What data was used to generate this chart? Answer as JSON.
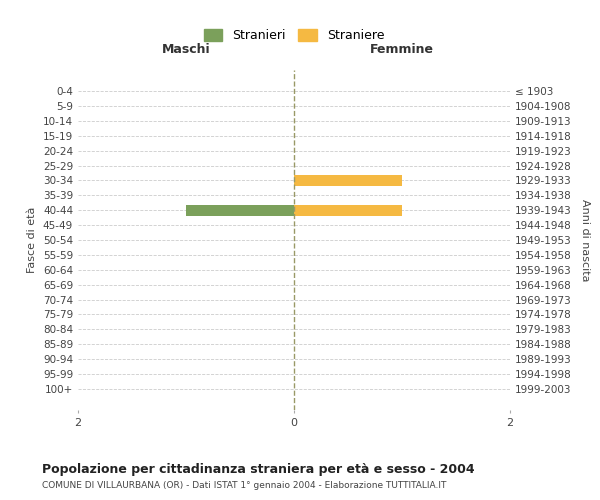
{
  "age_groups": [
    "0-4",
    "5-9",
    "10-14",
    "15-19",
    "20-24",
    "25-29",
    "30-34",
    "35-39",
    "40-44",
    "45-49",
    "50-54",
    "55-59",
    "60-64",
    "65-69",
    "70-74",
    "75-79",
    "80-84",
    "85-89",
    "90-94",
    "95-99",
    "100+"
  ],
  "birth_years": [
    "1999-2003",
    "1994-1998",
    "1989-1993",
    "1984-1988",
    "1979-1983",
    "1974-1978",
    "1969-1973",
    "1964-1968",
    "1959-1963",
    "1954-1958",
    "1949-1953",
    "1944-1948",
    "1939-1943",
    "1934-1938",
    "1929-1933",
    "1924-1928",
    "1919-1923",
    "1914-1918",
    "1909-1913",
    "1904-1908",
    "≤ 1903"
  ],
  "males": [
    0,
    0,
    0,
    0,
    0,
    0,
    0,
    0,
    1,
    0,
    0,
    0,
    0,
    0,
    0,
    0,
    0,
    0,
    0,
    0,
    0
  ],
  "females": [
    0,
    0,
    0,
    0,
    0,
    0,
    1,
    0,
    1,
    0,
    0,
    0,
    0,
    0,
    0,
    0,
    0,
    0,
    0,
    0,
    0
  ],
  "xlim": [
    -2,
    2
  ],
  "xticks": [
    -2,
    0,
    2
  ],
  "xticklabels": [
    "2",
    "0",
    "2"
  ],
  "male_color": "#7ba05b",
  "female_color": "#f5b942",
  "male_label": "Stranieri",
  "female_label": "Straniere",
  "maschi_label": "Maschi",
  "femmine_label": "Femmine",
  "ylabel_left": "Fasce di età",
  "ylabel_right": "Anni di nascita",
  "title": "Popolazione per cittadinanza straniera per età e sesso - 2004",
  "subtitle": "COMUNE DI VILLAURBANA (OR) - Dati ISTAT 1° gennaio 2004 - Elaborazione TUTTITALIA.IT",
  "grid_color": "#cccccc",
  "bg_color": "#ffffff",
  "bar_height": 0.75
}
